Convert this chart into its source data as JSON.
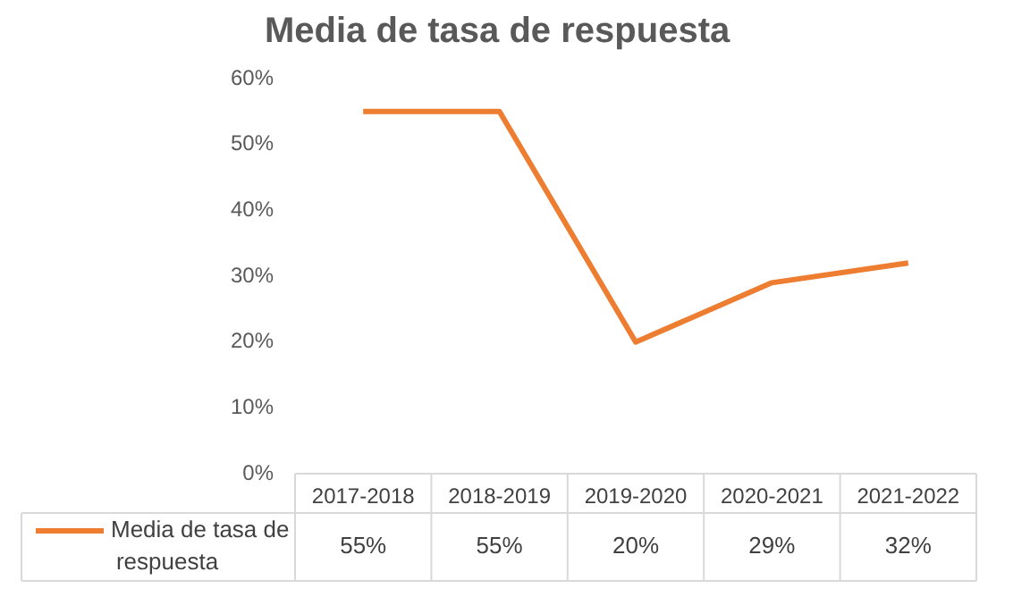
{
  "chart_data": {
    "type": "line",
    "title": "Media de tasa de respuesta",
    "categories": [
      "2017-2018",
      "2018-2019",
      "2019-2020",
      "2020-2021",
      "2021-2022"
    ],
    "series": [
      {
        "name": "Media de tasa de respuesta",
        "color": "#ed7d31",
        "values": [
          55,
          55,
          20,
          29,
          32
        ],
        "value_labels": [
          "55%",
          "55%",
          "20%",
          "29%",
          "32%"
        ]
      }
    ],
    "ylim": [
      0,
      60
    ],
    "yticks": [
      {
        "value": 0,
        "label": "0%"
      },
      {
        "value": 10,
        "label": "10%"
      },
      {
        "value": 20,
        "label": "20%"
      },
      {
        "value": 30,
        "label": "30%"
      },
      {
        "value": 40,
        "label": "40%"
      },
      {
        "value": 50,
        "label": "50%"
      },
      {
        "value": 60,
        "label": "60%"
      }
    ],
    "grid": false,
    "legend": "bottom left",
    "marker": "none",
    "line_style": "solid"
  }
}
